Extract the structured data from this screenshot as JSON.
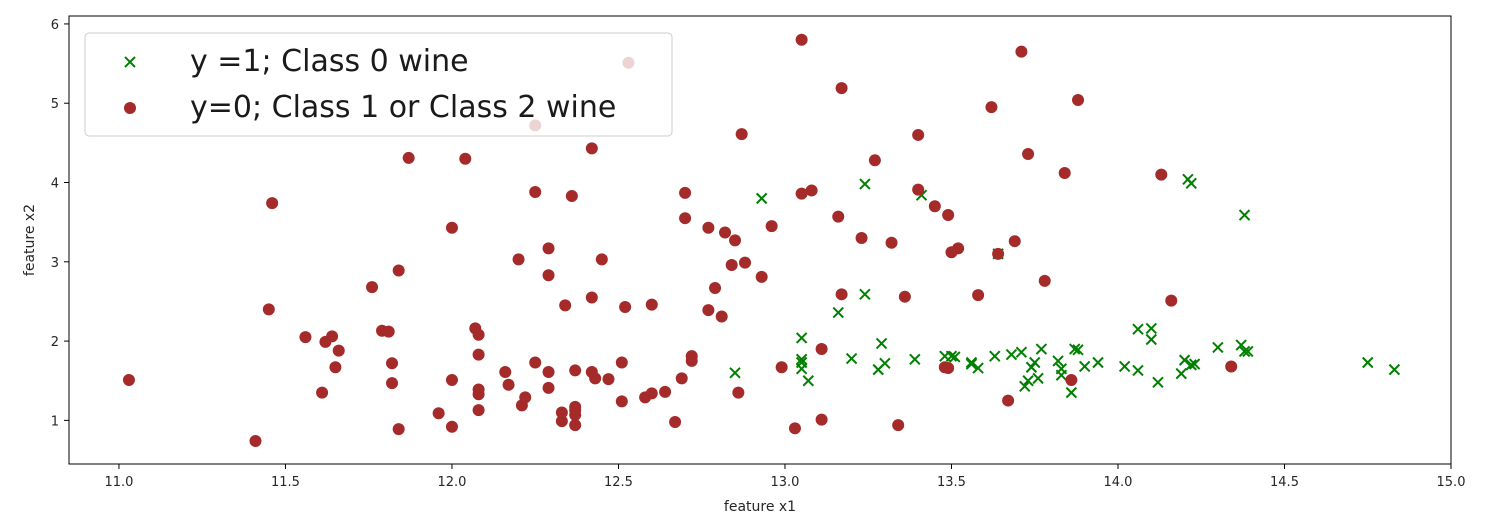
{
  "chart_data": {
    "type": "scatter",
    "xlabel": "feature x1",
    "ylabel": "feature x2",
    "xlim": [
      10.85,
      15.0
    ],
    "ylim": [
      0.45,
      6.1
    ],
    "x_ticks": [
      11.0,
      11.5,
      12.0,
      12.5,
      13.0,
      13.5,
      14.0,
      14.5,
      15.0
    ],
    "x_tick_labels": [
      "11.0",
      "11.5",
      "12.0",
      "12.5",
      "13.0",
      "13.5",
      "14.0",
      "14.5",
      "15.0"
    ],
    "y_ticks": [
      1,
      2,
      3,
      4,
      5,
      6
    ],
    "y_tick_labels": [
      "1",
      "2",
      "3",
      "4",
      "5",
      "6"
    ],
    "grid": false,
    "legend_position": "top-left",
    "series": [
      {
        "name": "y =1; Class 0 wine",
        "marker": "x",
        "color": "#008000",
        "points": [
          [
            12.85,
            1.6
          ],
          [
            12.93,
            3.8
          ],
          [
            13.05,
            2.04
          ],
          [
            13.05,
            1.77
          ],
          [
            13.05,
            1.73
          ],
          [
            13.05,
            1.65
          ],
          [
            13.07,
            1.5
          ],
          [
            13.16,
            2.36
          ],
          [
            13.2,
            1.78
          ],
          [
            13.24,
            2.59
          ],
          [
            13.24,
            3.98
          ],
          [
            13.28,
            1.64
          ],
          [
            13.29,
            1.97
          ],
          [
            13.3,
            1.72
          ],
          [
            13.39,
            1.77
          ],
          [
            13.41,
            3.84
          ],
          [
            13.48,
            1.81
          ],
          [
            13.5,
            1.81
          ],
          [
            13.51,
            1.8
          ],
          [
            13.56,
            1.73
          ],
          [
            13.56,
            1.71
          ],
          [
            13.58,
            1.66
          ],
          [
            13.63,
            1.81
          ],
          [
            13.64,
            3.1
          ],
          [
            13.68,
            1.83
          ],
          [
            13.71,
            1.86
          ],
          [
            13.72,
            1.43
          ],
          [
            13.73,
            1.5
          ],
          [
            13.74,
            1.67
          ],
          [
            13.75,
            1.73
          ],
          [
            13.76,
            1.53
          ],
          [
            13.77,
            1.9
          ],
          [
            13.82,
            1.75
          ],
          [
            13.83,
            1.57
          ],
          [
            13.83,
            1.65
          ],
          [
            13.86,
            1.35
          ],
          [
            13.87,
            1.9
          ],
          [
            13.88,
            1.89
          ],
          [
            13.9,
            1.68
          ],
          [
            13.94,
            1.73
          ],
          [
            14.02,
            1.68
          ],
          [
            14.06,
            1.63
          ],
          [
            14.1,
            2.16
          ],
          [
            14.1,
            2.02
          ],
          [
            14.12,
            1.48
          ],
          [
            14.19,
            1.59
          ],
          [
            14.2,
            1.76
          ],
          [
            14.21,
            4.04
          ],
          [
            14.22,
            3.99
          ],
          [
            14.22,
            1.7
          ],
          [
            14.23,
            1.71
          ],
          [
            14.3,
            1.92
          ],
          [
            14.37,
            1.95
          ],
          [
            14.38,
            1.87
          ],
          [
            14.38,
            3.59
          ],
          [
            14.39,
            1.87
          ],
          [
            14.75,
            1.73
          ],
          [
            14.83,
            1.64
          ],
          [
            14.06,
            2.15
          ]
        ]
      },
      {
        "name": "y=0; Class 1 or Class 2 wine",
        "marker": "o",
        "color": "#a52a2a",
        "points": [
          [
            11.03,
            1.51
          ],
          [
            11.41,
            0.74
          ],
          [
            11.45,
            2.4
          ],
          [
            11.46,
            3.74
          ],
          [
            11.56,
            2.05
          ],
          [
            11.61,
            1.35
          ],
          [
            11.62,
            1.99
          ],
          [
            11.64,
            2.06
          ],
          [
            11.65,
            1.67
          ],
          [
            11.66,
            1.88
          ],
          [
            11.76,
            2.68
          ],
          [
            11.79,
            2.13
          ],
          [
            11.81,
            2.12
          ],
          [
            11.82,
            1.72
          ],
          [
            11.82,
            1.47
          ],
          [
            11.84,
            2.89
          ],
          [
            11.84,
            0.89
          ],
          [
            11.87,
            4.31
          ],
          [
            11.96,
            1.09
          ],
          [
            12.0,
            3.43
          ],
          [
            12.0,
            0.92
          ],
          [
            12.0,
            1.51
          ],
          [
            12.04,
            4.3
          ],
          [
            12.07,
            2.16
          ],
          [
            12.08,
            1.83
          ],
          [
            12.08,
            1.13
          ],
          [
            12.08,
            2.08
          ],
          [
            12.08,
            1.33
          ],
          [
            12.08,
            1.39
          ],
          [
            12.16,
            1.61
          ],
          [
            12.17,
            1.45
          ],
          [
            12.2,
            3.03
          ],
          [
            12.21,
            1.19
          ],
          [
            12.22,
            1.29
          ],
          [
            12.25,
            1.73
          ],
          [
            12.25,
            3.88
          ],
          [
            12.25,
            4.72
          ],
          [
            12.29,
            3.17
          ],
          [
            12.29,
            2.83
          ],
          [
            12.29,
            1.61
          ],
          [
            12.29,
            1.41
          ],
          [
            12.33,
            1.1
          ],
          [
            12.33,
            0.99
          ],
          [
            12.34,
            2.45
          ],
          [
            12.36,
            3.83
          ],
          [
            12.37,
            1.17
          ],
          [
            12.37,
            1.13
          ],
          [
            12.37,
            1.07
          ],
          [
            12.37,
            0.94
          ],
          [
            12.37,
            1.63
          ],
          [
            12.42,
            2.55
          ],
          [
            12.42,
            4.43
          ],
          [
            12.42,
            1.61
          ],
          [
            12.43,
            1.53
          ],
          [
            12.45,
            3.03
          ],
          [
            12.47,
            1.52
          ],
          [
            12.51,
            1.73
          ],
          [
            12.51,
            1.24
          ],
          [
            12.52,
            2.43
          ],
          [
            12.53,
            5.51
          ],
          [
            12.58,
            1.29
          ],
          [
            12.6,
            2.46
          ],
          [
            12.6,
            1.34
          ],
          [
            12.64,
            1.36
          ],
          [
            12.67,
            0.98
          ],
          [
            12.69,
            1.53
          ],
          [
            12.7,
            3.87
          ],
          [
            12.7,
            3.55
          ],
          [
            12.72,
            1.75
          ],
          [
            12.72,
            1.81
          ],
          [
            12.77,
            3.43
          ],
          [
            12.77,
            2.39
          ],
          [
            12.79,
            2.67
          ],
          [
            12.81,
            2.31
          ],
          [
            12.82,
            3.37
          ],
          [
            12.84,
            2.96
          ],
          [
            12.85,
            3.27
          ],
          [
            12.86,
            1.35
          ],
          [
            12.87,
            4.61
          ],
          [
            12.88,
            2.99
          ],
          [
            12.93,
            2.81
          ],
          [
            12.96,
            3.45
          ],
          [
            12.99,
            1.67
          ],
          [
            13.03,
            0.9
          ],
          [
            13.05,
            5.8
          ],
          [
            13.05,
            3.86
          ],
          [
            13.08,
            3.9
          ],
          [
            13.11,
            1.9
          ],
          [
            13.11,
            1.01
          ],
          [
            13.16,
            3.57
          ],
          [
            13.17,
            5.19
          ],
          [
            13.17,
            2.59
          ],
          [
            13.23,
            3.3
          ],
          [
            13.27,
            4.28
          ],
          [
            13.32,
            3.24
          ],
          [
            13.34,
            0.94
          ],
          [
            13.36,
            2.56
          ],
          [
            13.4,
            4.6
          ],
          [
            13.4,
            3.91
          ],
          [
            13.45,
            3.7
          ],
          [
            13.48,
            1.67
          ],
          [
            13.49,
            1.66
          ],
          [
            13.49,
            3.59
          ],
          [
            13.5,
            3.12
          ],
          [
            13.52,
            3.17
          ],
          [
            13.58,
            2.58
          ],
          [
            13.62,
            4.95
          ],
          [
            13.64,
            3.1
          ],
          [
            13.67,
            1.25
          ],
          [
            13.69,
            3.26
          ],
          [
            13.71,
            5.65
          ],
          [
            13.73,
            4.36
          ],
          [
            13.78,
            2.76
          ],
          [
            13.84,
            4.12
          ],
          [
            13.86,
            1.51
          ],
          [
            13.88,
            5.04
          ],
          [
            14.13,
            4.1
          ],
          [
            14.16,
            2.51
          ],
          [
            14.34,
            1.68
          ]
        ]
      }
    ]
  }
}
